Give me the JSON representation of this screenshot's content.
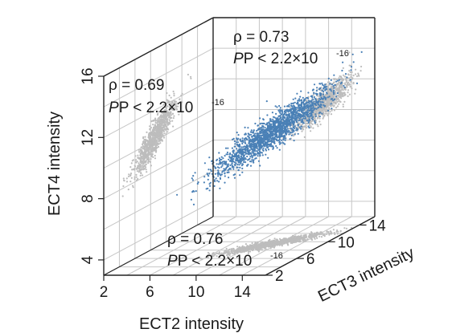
{
  "chart_data": {
    "type": "scatter",
    "x_axis": {
      "label": "ECT2 intensity",
      "ticks": [
        "2",
        "6",
        "10",
        "14"
      ],
      "range": [
        2,
        16
      ]
    },
    "y_axis": {
      "label": "ECT3 intensity",
      "ticks": [
        "2",
        "6",
        "10",
        "14"
      ],
      "range": [
        2,
        16
      ]
    },
    "z_axis": {
      "label": "ECT4 intensity",
      "ticks": [
        "4",
        "8",
        "12",
        "16"
      ],
      "range": [
        3,
        16
      ]
    },
    "grid": true,
    "colors": {
      "main": "#4a80b6",
      "projection": "#bdbdbd",
      "grid": "#c6c6c6",
      "axes": "#222222"
    },
    "series": [
      {
        "panel": "floor",
        "pair": [
          "ECT2",
          "ECT3"
        ],
        "color": "#bdbdbd",
        "center": [
          11.5,
          9.5
        ],
        "slope": 0.75,
        "spread": 1.5,
        "annotation": {
          "rho_text": "ρ = 0.76",
          "p_text": "P < 2.2×10",
          "p_exp": "-16"
        }
      },
      {
        "panel": "left wall",
        "pair": [
          "ECT3",
          "ECT4"
        ],
        "color": "#bdbdbd",
        "center": [
          8.5,
          10.2
        ],
        "slope": 0.55,
        "spread": 1.3,
        "annotation": {
          "rho_text": "ρ = 0.69",
          "p_text": "P < 2.2×10",
          "p_exp": "-16"
        }
      },
      {
        "panel": "back wall",
        "pair": [
          "ECT2",
          "ECT4"
        ],
        "color": "#bdbdbd",
        "center": [
          11.5,
          10.4
        ],
        "slope": 0.6,
        "spread": 1.2,
        "annotation": {
          "rho_text": "ρ = 0.73",
          "p_text": "P < 2.2×10",
          "p_exp": "-16"
        }
      },
      {
        "panel": "3D",
        "pair": [
          "ECT2",
          "ECT3",
          "ECT4"
        ],
        "color": "#4a80b6",
        "center": [
          11.5,
          9.5,
          10.3
        ],
        "spread": 1.6
      }
    ]
  }
}
